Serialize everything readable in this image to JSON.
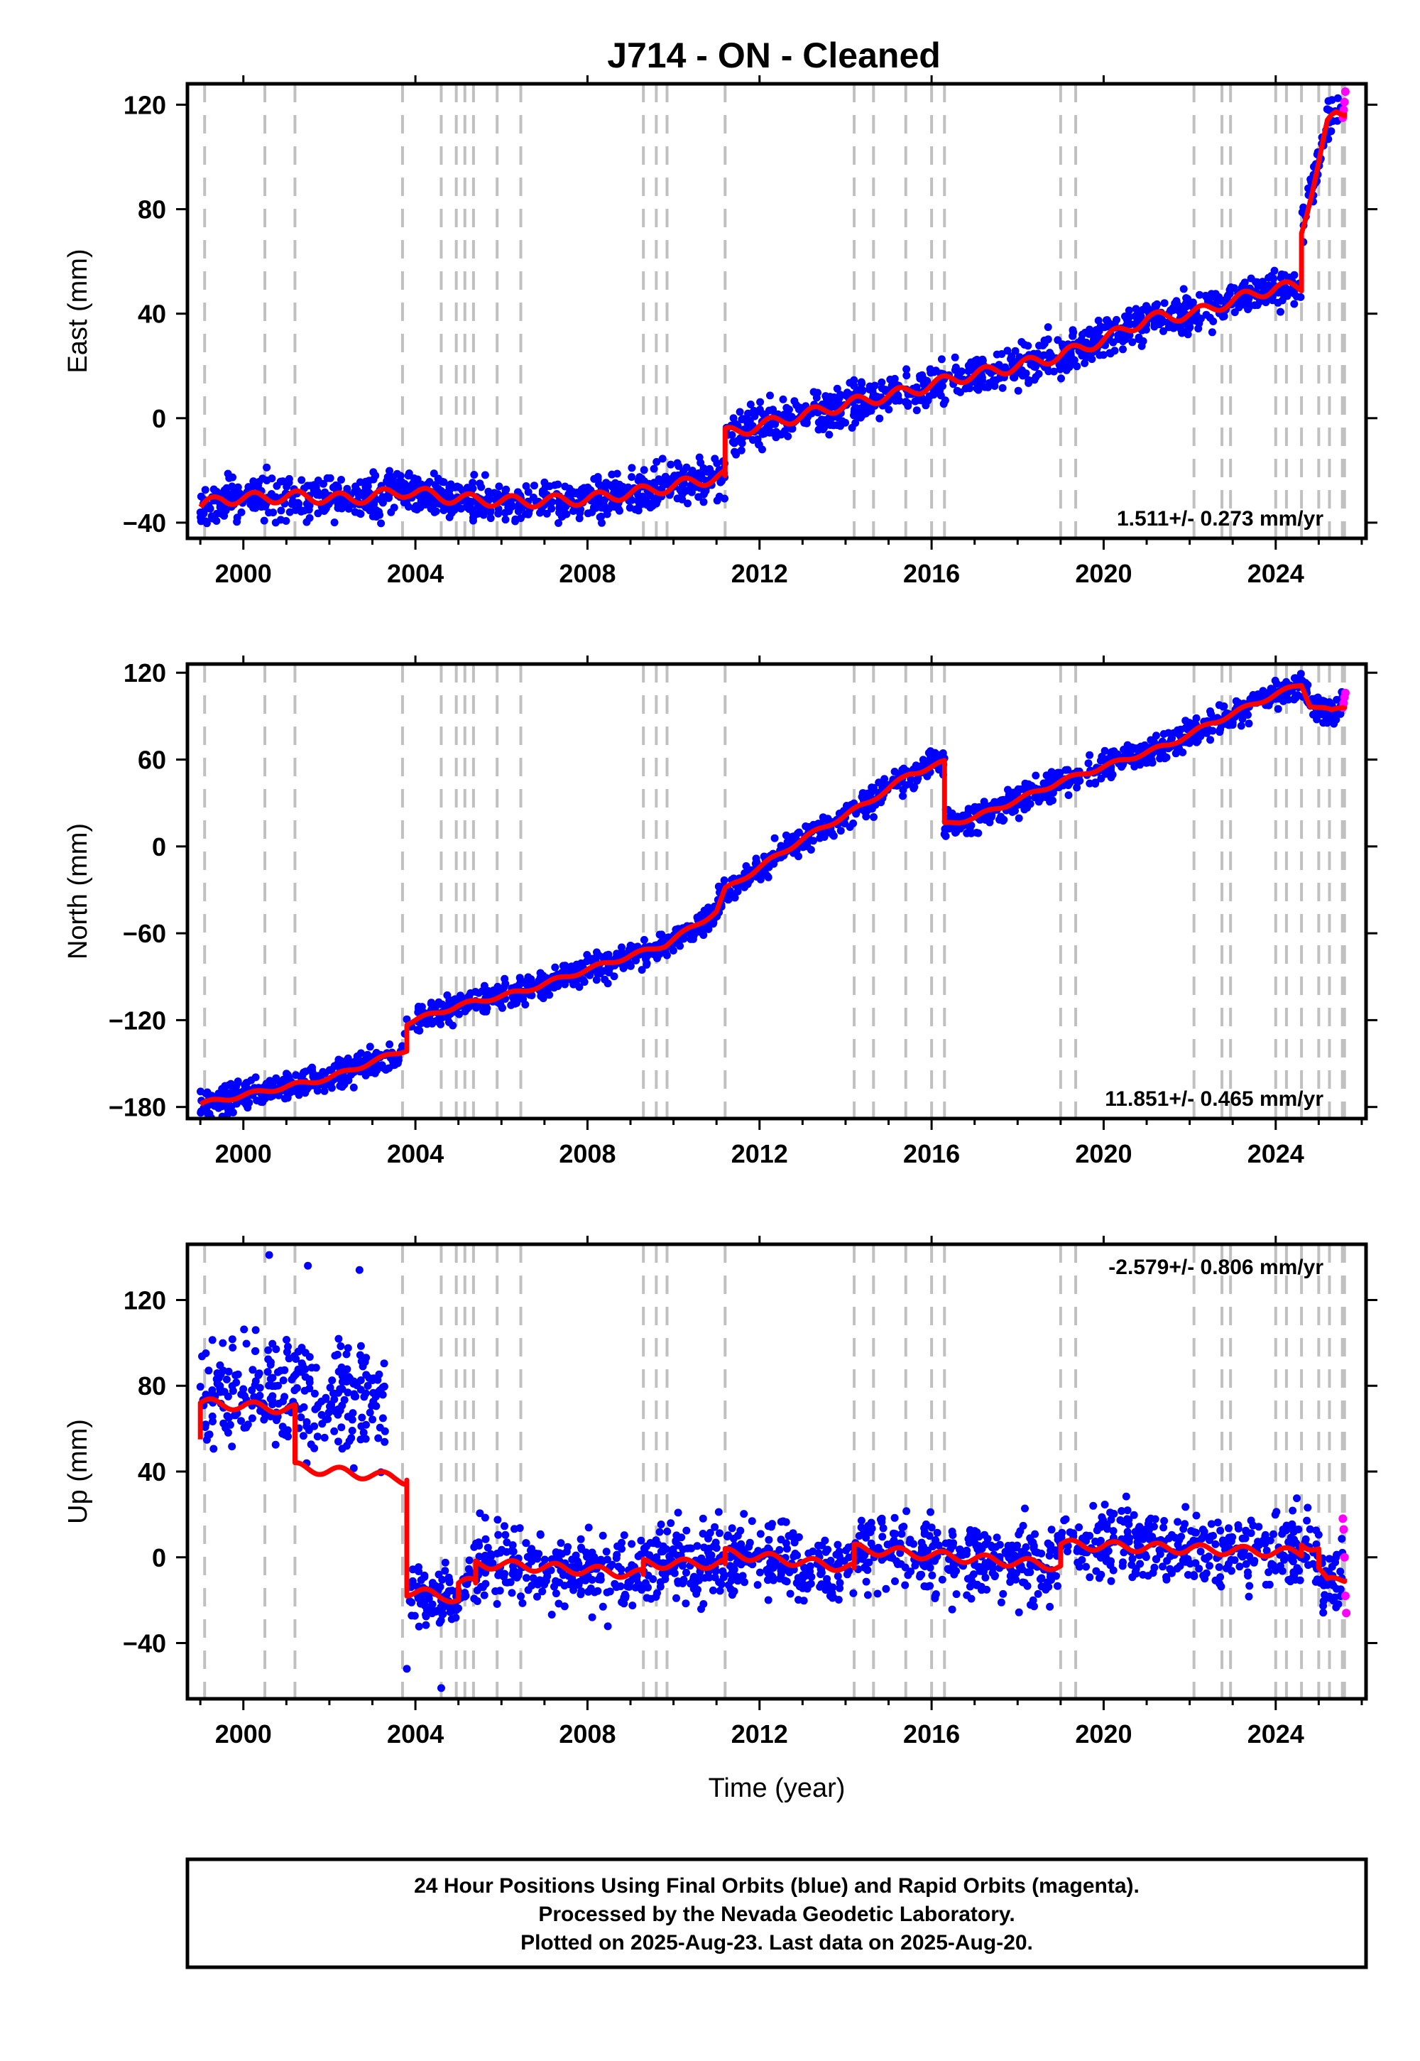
{
  "title": "J714  - ON - Cleaned",
  "chart_data": [
    {
      "type": "scatter",
      "name": "east",
      "ylabel": "East (mm)",
      "xlabel": "",
      "xlim": [
        1998.7,
        2026.1
      ],
      "ylim": [
        -46,
        128
      ],
      "x_ticks": [
        2000,
        2004,
        2008,
        2012,
        2016,
        2020,
        2024
      ],
      "y_ticks": [
        -40,
        0,
        40,
        80,
        120
      ],
      "rate_text": "1.511+/- 0.273 mm/yr",
      "grid": "vertical dashed lines at equipment changes",
      "model": [
        [
          1999.0,
          -34
        ],
        [
          1999.5,
          -31
        ],
        [
          2001.2,
          -30
        ],
        [
          2002.5,
          -31
        ],
        [
          2003.8,
          -28
        ],
        [
          2005.0,
          -31
        ],
        [
          2006.5,
          -32
        ],
        [
          2008.0,
          -31
        ],
        [
          2009.3,
          -28
        ],
        [
          2010.0,
          -26
        ],
        [
          2011.2,
          -22
        ],
        [
          2011.2,
          -6
        ],
        [
          2012.5,
          -1
        ],
        [
          2014.2,
          6
        ],
        [
          2015.4,
          10
        ],
        [
          2016.5,
          15
        ],
        [
          2018.0,
          20
        ],
        [
          2019.0,
          24
        ],
        [
          2020.0,
          30
        ],
        [
          2021.0,
          38
        ],
        [
          2022.1,
          40
        ],
        [
          2023.0,
          45
        ],
        [
          2024.0,
          50
        ],
        [
          2024.6,
          50
        ],
        [
          2024.6,
          72
        ],
        [
          2024.8,
          85
        ],
        [
          2025.0,
          98
        ],
        [
          2025.2,
          112
        ],
        [
          2025.4,
          116
        ],
        [
          2025.6,
          117
        ]
      ],
      "final_orbits_cloud": {
        "x_range": [
          1999.0,
          2025.55
        ],
        "spread_mm": 4
      },
      "rapid_orbits": [
        [
          2025.56,
          115
        ],
        [
          2025.58,
          118
        ],
        [
          2025.6,
          121
        ],
        [
          2025.62,
          125
        ]
      ],
      "colors": {
        "final": "#0000ff",
        "rapid": "#ff00ff",
        "model": "#ff0000"
      }
    },
    {
      "type": "scatter",
      "name": "north",
      "ylabel": "North (mm)",
      "xlabel": "",
      "xlim": [
        1998.7,
        2026.1
      ],
      "ylim": [
        -188,
        126
      ],
      "x_ticks": [
        2000,
        2004,
        2008,
        2012,
        2016,
        2020,
        2024
      ],
      "y_ticks": [
        -180,
        -120,
        -60,
        0,
        60,
        120
      ],
      "rate_text": "11.851+/- 0.465 mm/yr",
      "grid": "vertical dashed lines at equipment changes",
      "model": [
        [
          1999.0,
          -178
        ],
        [
          2000.0,
          -172
        ],
        [
          2002.0,
          -160
        ],
        [
          2003.8,
          -140
        ],
        [
          2003.8,
          -122
        ],
        [
          2005.0,
          -110
        ],
        [
          2006.5,
          -100
        ],
        [
          2008.0,
          -85
        ],
        [
          2009.8,
          -68
        ],
        [
          2011.0,
          -45
        ],
        [
          2011.2,
          -30
        ],
        [
          2013.0,
          5
        ],
        [
          2014.5,
          30
        ],
        [
          2015.5,
          50
        ],
        [
          2016.3,
          58
        ],
        [
          2016.3,
          15
        ],
        [
          2017.0,
          20
        ],
        [
          2018.0,
          32
        ],
        [
          2019.0,
          45
        ],
        [
          2020.0,
          55
        ],
        [
          2021.5,
          70
        ],
        [
          2022.5,
          85
        ],
        [
          2024.0,
          105
        ],
        [
          2024.6,
          112
        ],
        [
          2024.8,
          98
        ],
        [
          2025.3,
          93
        ],
        [
          2025.6,
          97
        ]
      ],
      "final_orbits_cloud": {
        "x_range": [
          1999.0,
          2025.55
        ],
        "spread_mm": 5
      },
      "rapid_orbits": [
        [
          2025.56,
          96
        ],
        [
          2025.58,
          99
        ],
        [
          2025.6,
          103
        ],
        [
          2025.62,
          106
        ]
      ],
      "colors": {
        "final": "#0000ff",
        "rapid": "#ff00ff",
        "model": "#ff0000"
      }
    },
    {
      "type": "scatter",
      "name": "up",
      "ylabel": "Up (mm)",
      "xlabel": "Time (year)",
      "xlim": [
        1998.7,
        2026.1
      ],
      "ylim": [
        -66,
        146
      ],
      "x_ticks": [
        2000,
        2004,
        2008,
        2012,
        2016,
        2020,
        2024
      ],
      "y_ticks": [
        -40,
        0,
        40,
        80,
        120
      ],
      "rate_text": "-2.579+/- 0.806 mm/yr",
      "grid": "vertical dashed lines at equipment changes",
      "model": [
        [
          1999.0,
          55
        ],
        [
          1999.0,
          72
        ],
        [
          2001.2,
          69
        ],
        [
          2001.2,
          42
        ],
        [
          2003.6,
          37
        ],
        [
          2003.8,
          36
        ],
        [
          2003.8,
          -16
        ],
        [
          2004.7,
          -18
        ],
        [
          2005.0,
          -20
        ],
        [
          2005.0,
          -12
        ],
        [
          2005.4,
          -12
        ],
        [
          2005.4,
          -3
        ],
        [
          2006.5,
          -4
        ],
        [
          2008.0,
          -6
        ],
        [
          2009.3,
          -8
        ],
        [
          2009.3,
          -3
        ],
        [
          2011.2,
          -3
        ],
        [
          2011.2,
          2
        ],
        [
          2014.2,
          -5
        ],
        [
          2014.2,
          4
        ],
        [
          2019.0,
          -4
        ],
        [
          2019.0,
          6
        ],
        [
          2024.6,
          2
        ],
        [
          2024.6,
          7
        ],
        [
          2025.0,
          4
        ],
        [
          2025.0,
          -5
        ],
        [
          2025.2,
          -12
        ],
        [
          2025.6,
          -10
        ]
      ],
      "final_orbits_cloud": {
        "x_range": [
          1999.0,
          2025.55
        ],
        "spread_mm": 9
      },
      "rapid_orbits": [
        [
          2025.56,
          18
        ],
        [
          2025.58,
          13
        ],
        [
          2025.6,
          0
        ],
        [
          2025.62,
          -18
        ],
        [
          2025.64,
          -26
        ]
      ],
      "outliers": [
        [
          2000.6,
          141
        ],
        [
          2001.5,
          136
        ],
        [
          2002.7,
          134
        ],
        [
          2003.8,
          -52
        ],
        [
          2004.6,
          -61
        ]
      ],
      "colors": {
        "final": "#0000ff",
        "rapid": "#ff00ff",
        "model": "#ff0000"
      }
    }
  ],
  "event_lines": [
    1999.1,
    2000.5,
    2001.2,
    2003.7,
    2004.6,
    2004.95,
    2005.15,
    2005.35,
    2005.9,
    2006.45,
    2009.3,
    2009.6,
    2009.85,
    2011.2,
    2014.2,
    2014.65,
    2015.4,
    2016.0,
    2016.3,
    2019.0,
    2019.35,
    2022.1,
    2022.75,
    2022.95,
    2024.0,
    2024.25,
    2024.6,
    2025.0,
    2025.25,
    2025.55,
    2025.6
  ],
  "footer": {
    "line1": "24 Hour Positions Using Final Orbits (blue) and Rapid Orbits (magenta).",
    "line2": "Processed by the Nevada Geodetic Laboratory.",
    "line3": "Plotted on 2025-Aug-23. Last data on 2025-Aug-20."
  }
}
